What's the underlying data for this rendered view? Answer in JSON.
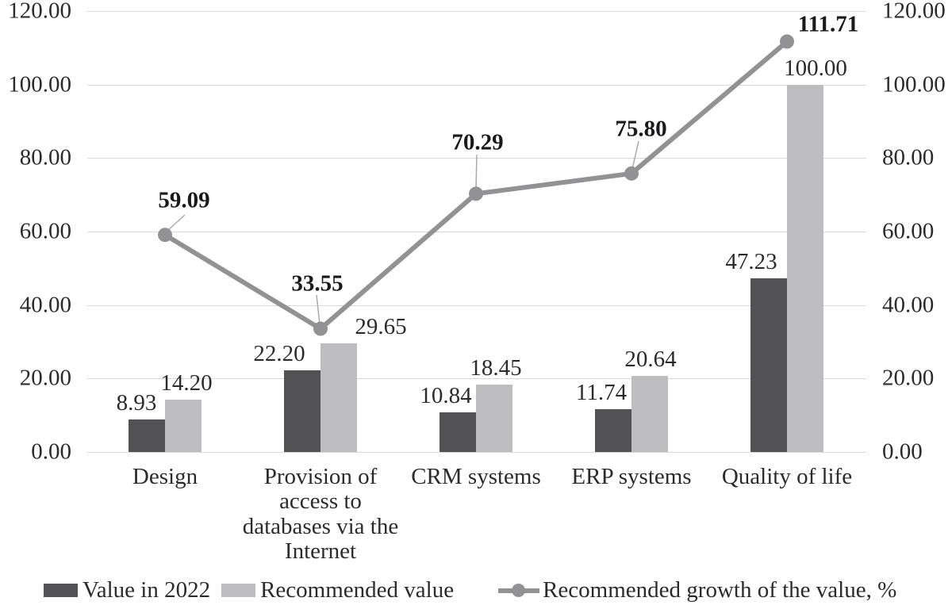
{
  "chart_data": {
    "type": "bar+line",
    "categories": [
      "Design",
      "Provision of access to databases via the Internet",
      "CRM systems",
      "ERP systems",
      "Quality of life"
    ],
    "series": [
      {
        "name": "Value in 2022",
        "type": "bar",
        "color": "#525254",
        "values": [
          8.93,
          22.2,
          10.84,
          11.74,
          47.23
        ],
        "labels": [
          "8.93",
          "22.20",
          "10.84",
          "11.74",
          "47.23"
        ]
      },
      {
        "name": "Recommended value",
        "type": "bar",
        "color": "#bdbdbf",
        "values": [
          14.2,
          29.65,
          18.45,
          20.64,
          100.0
        ],
        "labels": [
          "14.20",
          "29.65",
          "18.45",
          "20.64",
          "100.00"
        ]
      },
      {
        "name": "Recommended growth of the value, %",
        "type": "line",
        "color": "#929294",
        "values": [
          59.09,
          33.55,
          70.29,
          75.8,
          111.71
        ],
        "labels": [
          "59.09",
          "33.55",
          "70.29",
          "75.80",
          "111.71"
        ]
      }
    ],
    "y_axis_left": {
      "ticks": [
        "0.00",
        "20.00",
        "40.00",
        "60.00",
        "80.00",
        "100.00",
        "120.00"
      ],
      "min": 0,
      "max": 120
    },
    "y_axis_right": {
      "ticks": [
        "0.00",
        "20.00",
        "40.00",
        "60.00",
        "80.00",
        "100.00",
        "120.00"
      ],
      "min": 0,
      "max": 120
    },
    "ylim": [
      0,
      120
    ],
    "grid": true,
    "grid_color": "#d9d9d9",
    "leader_color": "#a9a9ab",
    "legend_position": "bottom"
  }
}
